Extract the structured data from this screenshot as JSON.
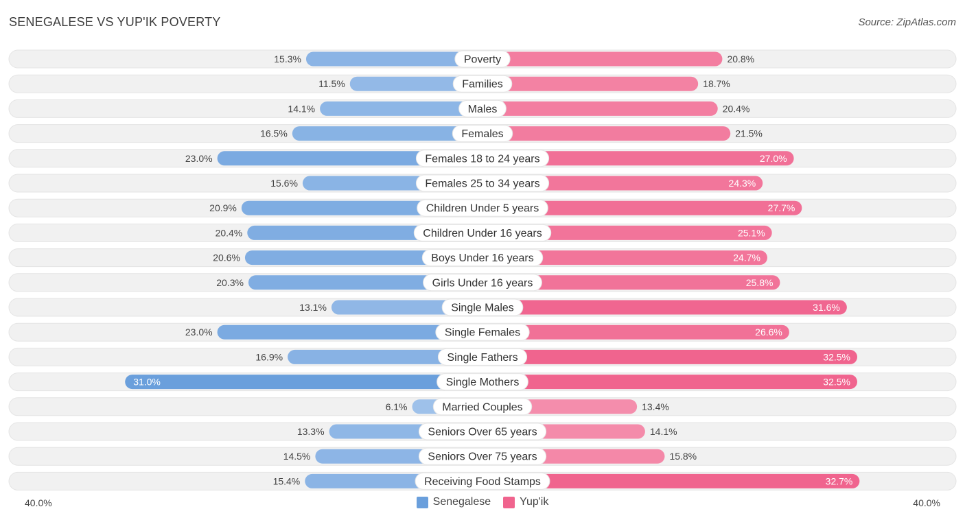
{
  "header": {
    "title": "SENEGALESE VS YUP'IK POVERTY",
    "source": "Source: ZipAtlas.com"
  },
  "colors": {
    "left_strong": "#6a9fdc",
    "left_light": "#abc9ee",
    "right_strong": "#f0648e",
    "right_light": "#f7a9c0",
    "row_bg": "#f1f1f1"
  },
  "chart_data": {
    "type": "bar",
    "orientation": "diverging-horizontal",
    "title": "SENEGALESE VS YUP'IK POVERTY",
    "categories": [
      "Poverty",
      "Families",
      "Males",
      "Females",
      "Females 18 to 24 years",
      "Females 25 to 34 years",
      "Children Under 5 years",
      "Children Under 16 years",
      "Boys Under 16 years",
      "Girls Under 16 years",
      "Single Males",
      "Single Females",
      "Single Fathers",
      "Single Mothers",
      "Married Couples",
      "Seniors Over 65 years",
      "Seniors Over 75 years",
      "Receiving Food Stamps"
    ],
    "series": [
      {
        "name": "Senegalese",
        "values": [
          15.3,
          11.5,
          14.1,
          16.5,
          23.0,
          15.6,
          20.9,
          20.4,
          20.6,
          20.3,
          13.1,
          23.0,
          16.9,
          31.0,
          6.1,
          13.3,
          14.5,
          15.4
        ],
        "labels": [
          "15.3%",
          "11.5%",
          "14.1%",
          "16.5%",
          "23.0%",
          "15.6%",
          "20.9%",
          "20.4%",
          "20.6%",
          "20.3%",
          "13.1%",
          "23.0%",
          "16.9%",
          "31.0%",
          "6.1%",
          "13.3%",
          "14.5%",
          "15.4%"
        ]
      },
      {
        "name": "Yup'ik",
        "values": [
          20.8,
          18.7,
          20.4,
          21.5,
          27.0,
          24.3,
          27.7,
          25.1,
          24.7,
          25.8,
          31.6,
          26.6,
          32.5,
          32.5,
          13.4,
          14.1,
          15.8,
          32.7
        ],
        "labels": [
          "20.8%",
          "18.7%",
          "20.4%",
          "21.5%",
          "27.0%",
          "24.3%",
          "27.7%",
          "25.1%",
          "24.7%",
          "25.8%",
          "31.6%",
          "26.6%",
          "32.5%",
          "32.5%",
          "13.4%",
          "14.1%",
          "15.8%",
          "32.7%"
        ]
      }
    ],
    "xlim": [
      -40,
      40
    ],
    "axis_min_label": "40.0%",
    "axis_max_label": "40.0%",
    "legend_position": "bottom-center"
  }
}
